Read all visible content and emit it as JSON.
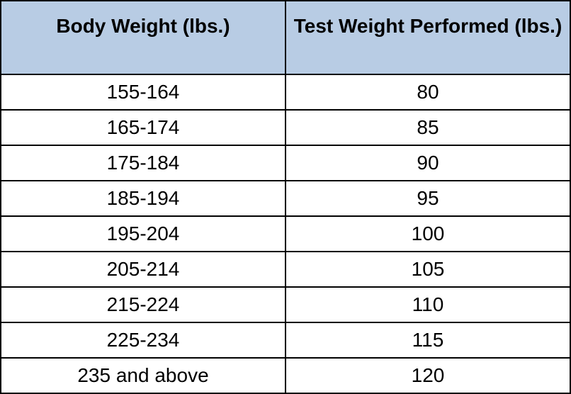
{
  "table": {
    "header": [
      "Body Weight (lbs.)",
      "Test Weight Performed (lbs.)"
    ],
    "rows": [
      [
        "155-164",
        80
      ],
      [
        "165-174",
        85
      ],
      [
        "175-184",
        90
      ],
      [
        "185-194",
        95
      ],
      [
        "195-204",
        100
      ],
      [
        "205-214",
        105
      ],
      [
        "215-224",
        110
      ],
      [
        "225-234",
        115
      ],
      [
        "235 and above",
        120
      ]
    ]
  }
}
